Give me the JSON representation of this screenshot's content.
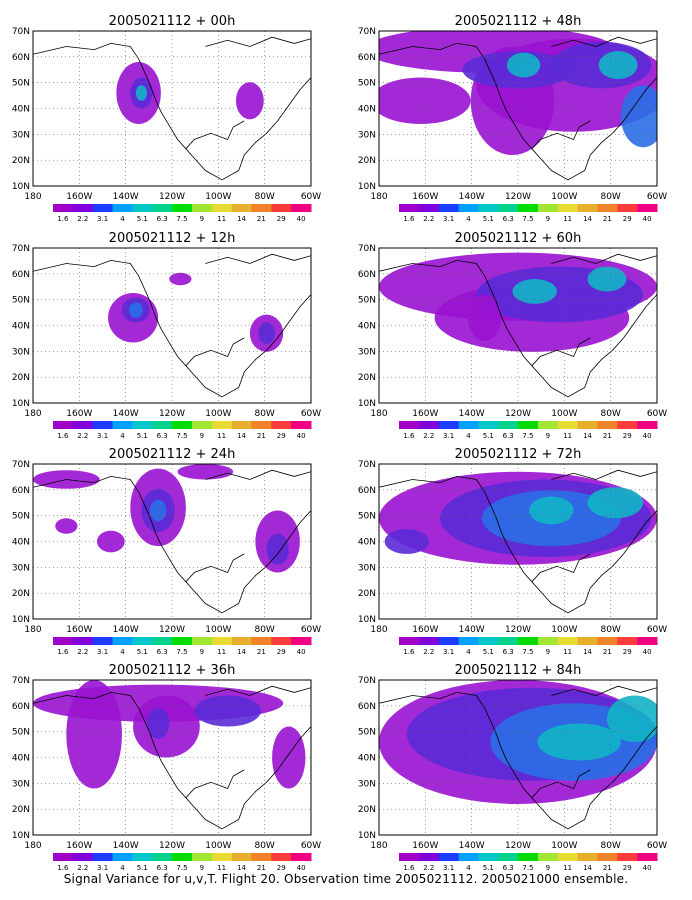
{
  "panels": [
    {
      "title": "2005021112 + 00h"
    },
    {
      "title": "2005021112 + 48h"
    },
    {
      "title": "2005021112 + 12h"
    },
    {
      "title": "2005021112 + 60h"
    },
    {
      "title": "2005021112 + 24h"
    },
    {
      "title": "2005021112 + 72h"
    },
    {
      "title": "2005021112 + 36h"
    },
    {
      "title": "2005021112 + 84h"
    }
  ],
  "lat_labels": [
    "70N",
    "60N",
    "50N",
    "40N",
    "30N",
    "20N",
    "10N"
  ],
  "lon_labels": [
    "180",
    "160W",
    "140W",
    "120W",
    "100W",
    "80W",
    "60W"
  ],
  "colorbar": {
    "labels": [
      "1.6",
      "2.2",
      "3.1",
      "4",
      "5.1",
      "6.3",
      "7.5",
      "9",
      "11",
      "14",
      "21",
      "29",
      "40"
    ],
    "colors": [
      "#a000c8",
      "#8200dc",
      "#1e3cff",
      "#00a0ff",
      "#00c8c8",
      "#00d28c",
      "#00dc00",
      "#a0e632",
      "#e6dc32",
      "#e6af2d",
      "#f08228",
      "#fa3c3c",
      "#f00082"
    ]
  },
  "caption": "Signal Variance for u,v,T. Flight 20. Observation time 2005021112. 2005021000 ensemble."
}
